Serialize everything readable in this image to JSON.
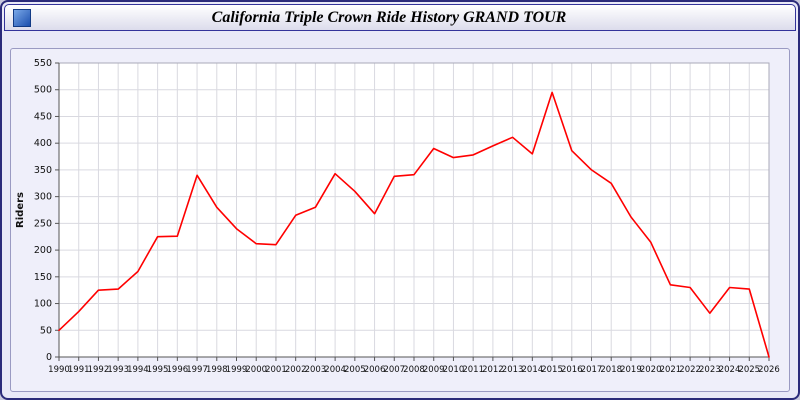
{
  "window": {
    "title": "California Triple Crown Ride History GRAND TOUR",
    "app_icon": "blue-square-logo"
  },
  "colors": {
    "page_background": "#e9e9f7",
    "panel_background": "#efeffa",
    "plot_background": "#ffffff",
    "grid": "#d9d9e0",
    "axis": "#555555",
    "line": "#ff0000",
    "border_navy": "#2b2b7a"
  },
  "chart_data": {
    "type": "line",
    "title": "California Triple Crown Ride History GRAND TOUR",
    "xlabel": "",
    "ylabel": "Riders",
    "x": [
      1990,
      1991,
      1992,
      1993,
      1994,
      1995,
      1996,
      1997,
      1998,
      1999,
      2000,
      2001,
      2002,
      2003,
      2004,
      2005,
      2006,
      2007,
      2008,
      2009,
      2010,
      2011,
      2012,
      2013,
      2014,
      2015,
      2016,
      2017,
      2018,
      2019,
      2020,
      2021,
      2022,
      2023,
      2024,
      2025,
      2026
    ],
    "values": [
      50,
      85,
      125,
      127,
      160,
      225,
      226,
      340,
      280,
      240,
      212,
      210,
      265,
      280,
      343,
      310,
      268,
      338,
      341,
      390,
      373,
      378,
      395,
      411,
      380,
      495,
      386,
      350,
      325,
      262,
      215,
      135,
      130,
      82,
      130,
      127,
      0
    ],
    "ylim": [
      0,
      550
    ],
    "ytick_step": 50,
    "grid": true,
    "legend": "none",
    "line_color": "#ff0000"
  }
}
